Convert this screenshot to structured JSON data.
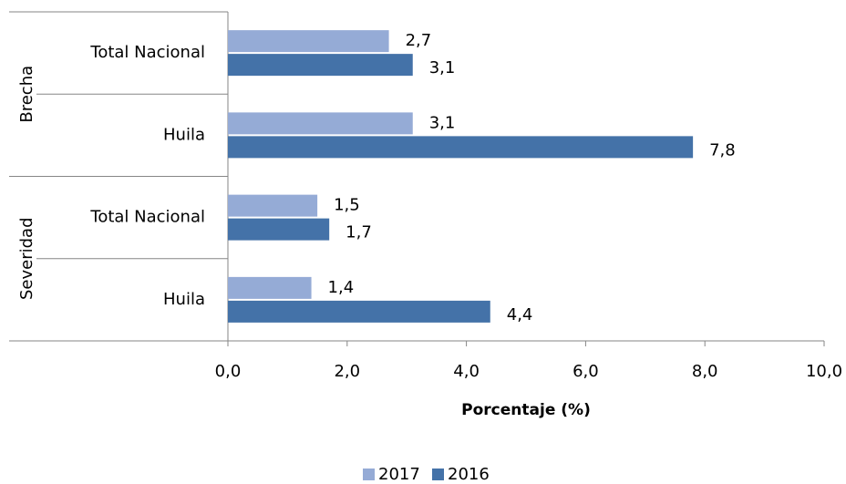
{
  "chart_data": {
    "type": "bar",
    "orientation": "horizontal",
    "groups": [
      {
        "label": "Brecha",
        "categories": [
          "Total Nacional",
          "Huila"
        ]
      },
      {
        "label": "Severidad",
        "categories": [
          "Total Nacional",
          "Huila"
        ]
      }
    ],
    "series": [
      {
        "name": "2017",
        "color": "#95abd6",
        "values": [
          2.7,
          3.1,
          1.5,
          1.4
        ],
        "value_labels": [
          "2,7",
          "3,1",
          "1,5",
          "1,4"
        ]
      },
      {
        "name": "2016",
        "color": "#4472a8",
        "values": [
          3.1,
          7.8,
          1.7,
          4.4
        ],
        "value_labels": [
          "3,1",
          "7,8",
          "1,7",
          "4,4"
        ]
      }
    ],
    "xlabel": "Porcentaje (%)",
    "xlim": [
      0,
      10
    ],
    "xticks": [
      {
        "value": 0,
        "label": "0,0"
      },
      {
        "value": 2,
        "label": "2,0"
      },
      {
        "value": 4,
        "label": "4,0"
      },
      {
        "value": 6,
        "label": "6,0"
      },
      {
        "value": 8,
        "label": "8,0"
      },
      {
        "value": 10,
        "label": "10,0"
      }
    ],
    "legend": "bottom"
  }
}
